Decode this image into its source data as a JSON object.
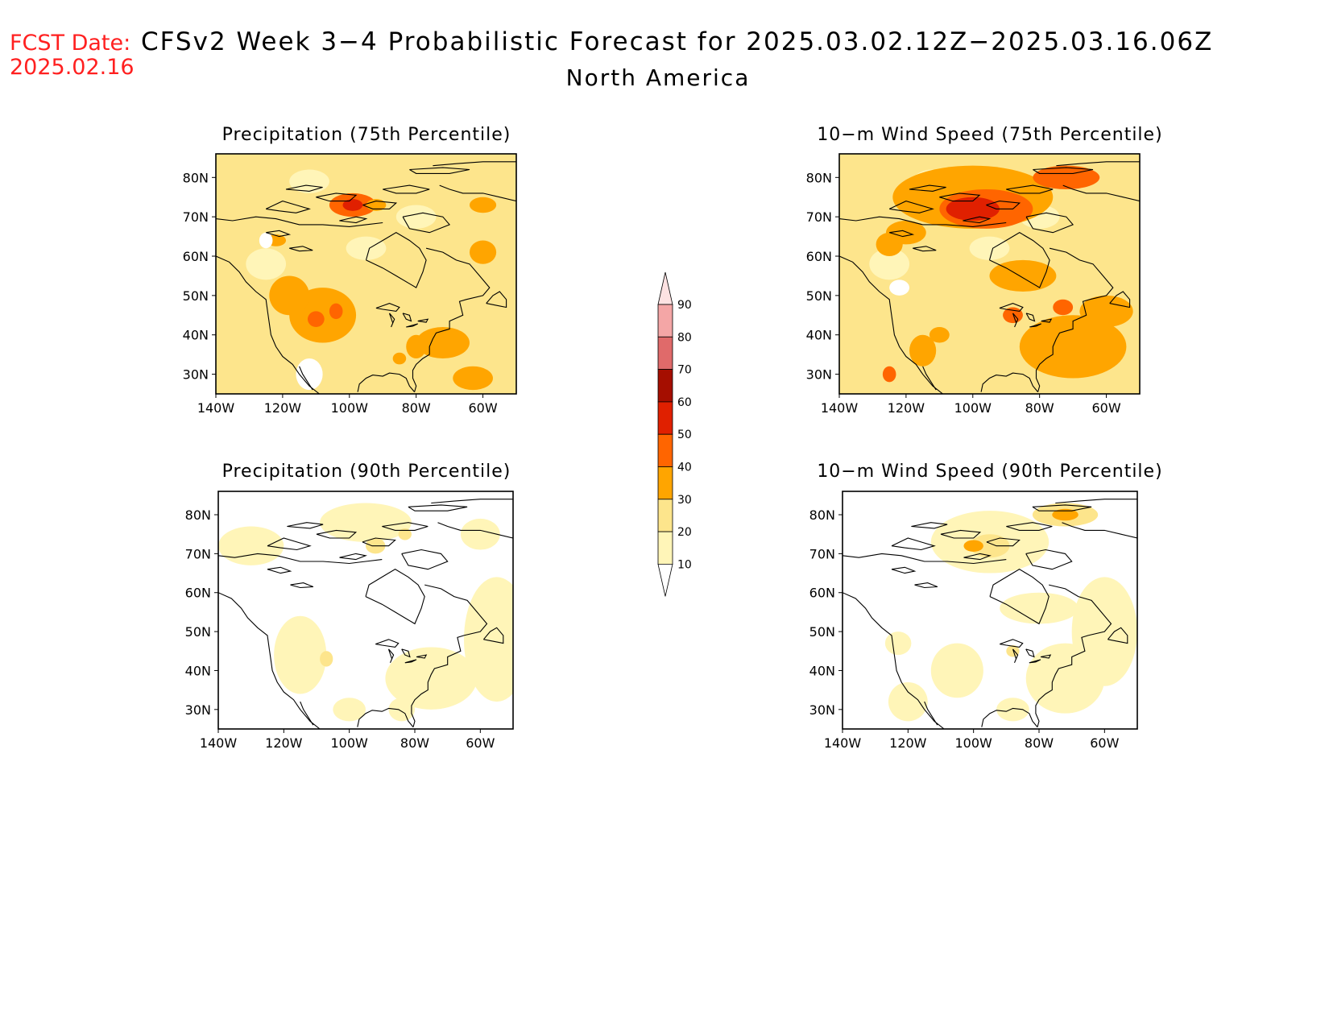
{
  "header": {
    "fcst_label": "FCST Date:",
    "fcst_date": "2025.02.16",
    "title": "CFSv2 Week 3−4 Probabilistic Forecast for 2025.03.02.12Z−2025.03.16.06Z",
    "subtitle": "North America"
  },
  "colors": {
    "header_red": "#ff2020",
    "levels": [
      "#ffffff",
      "#fff5b8",
      "#fde58c",
      "#ffa500",
      "#ff6500",
      "#e02000",
      "#a50e00",
      "#e06a6a",
      "#f4a6a6",
      "#fde2e2"
    ]
  },
  "panels": [
    {
      "title": "Precipitation (75th Percentile)",
      "lat_labels": [
        "80N",
        "70N",
        "60N",
        "50N",
        "40N",
        "30N"
      ],
      "lon_labels": [
        "140W",
        "120W",
        "100W",
        "80W",
        "60W"
      ],
      "intensity": "p75"
    },
    {
      "title": "10−m Wind Speed (75th Percentile)",
      "lat_labels": [
        "80N",
        "70N",
        "60N",
        "50N",
        "40N",
        "30N"
      ],
      "lon_labels": [
        "140W",
        "120W",
        "100W",
        "80W",
        "60W"
      ],
      "intensity": "w75"
    },
    {
      "title": "Precipitation (90th Percentile)",
      "lat_labels": [
        "80N",
        "70N",
        "60N",
        "50N",
        "40N",
        "30N"
      ],
      "lon_labels": [
        "140W",
        "120W",
        "100W",
        "80W",
        "60W"
      ],
      "intensity": "p90"
    },
    {
      "title": "10−m Wind Speed (90th Percentile)",
      "lat_labels": [
        "80N",
        "70N",
        "60N",
        "50N",
        "40N",
        "30N"
      ],
      "lon_labels": [
        "140W",
        "120W",
        "100W",
        "80W",
        "60W"
      ],
      "intensity": "w90"
    }
  ],
  "colorbar": {
    "labels": [
      "10",
      "20",
      "30",
      "40",
      "50",
      "60",
      "70",
      "80",
      "90"
    ]
  }
}
